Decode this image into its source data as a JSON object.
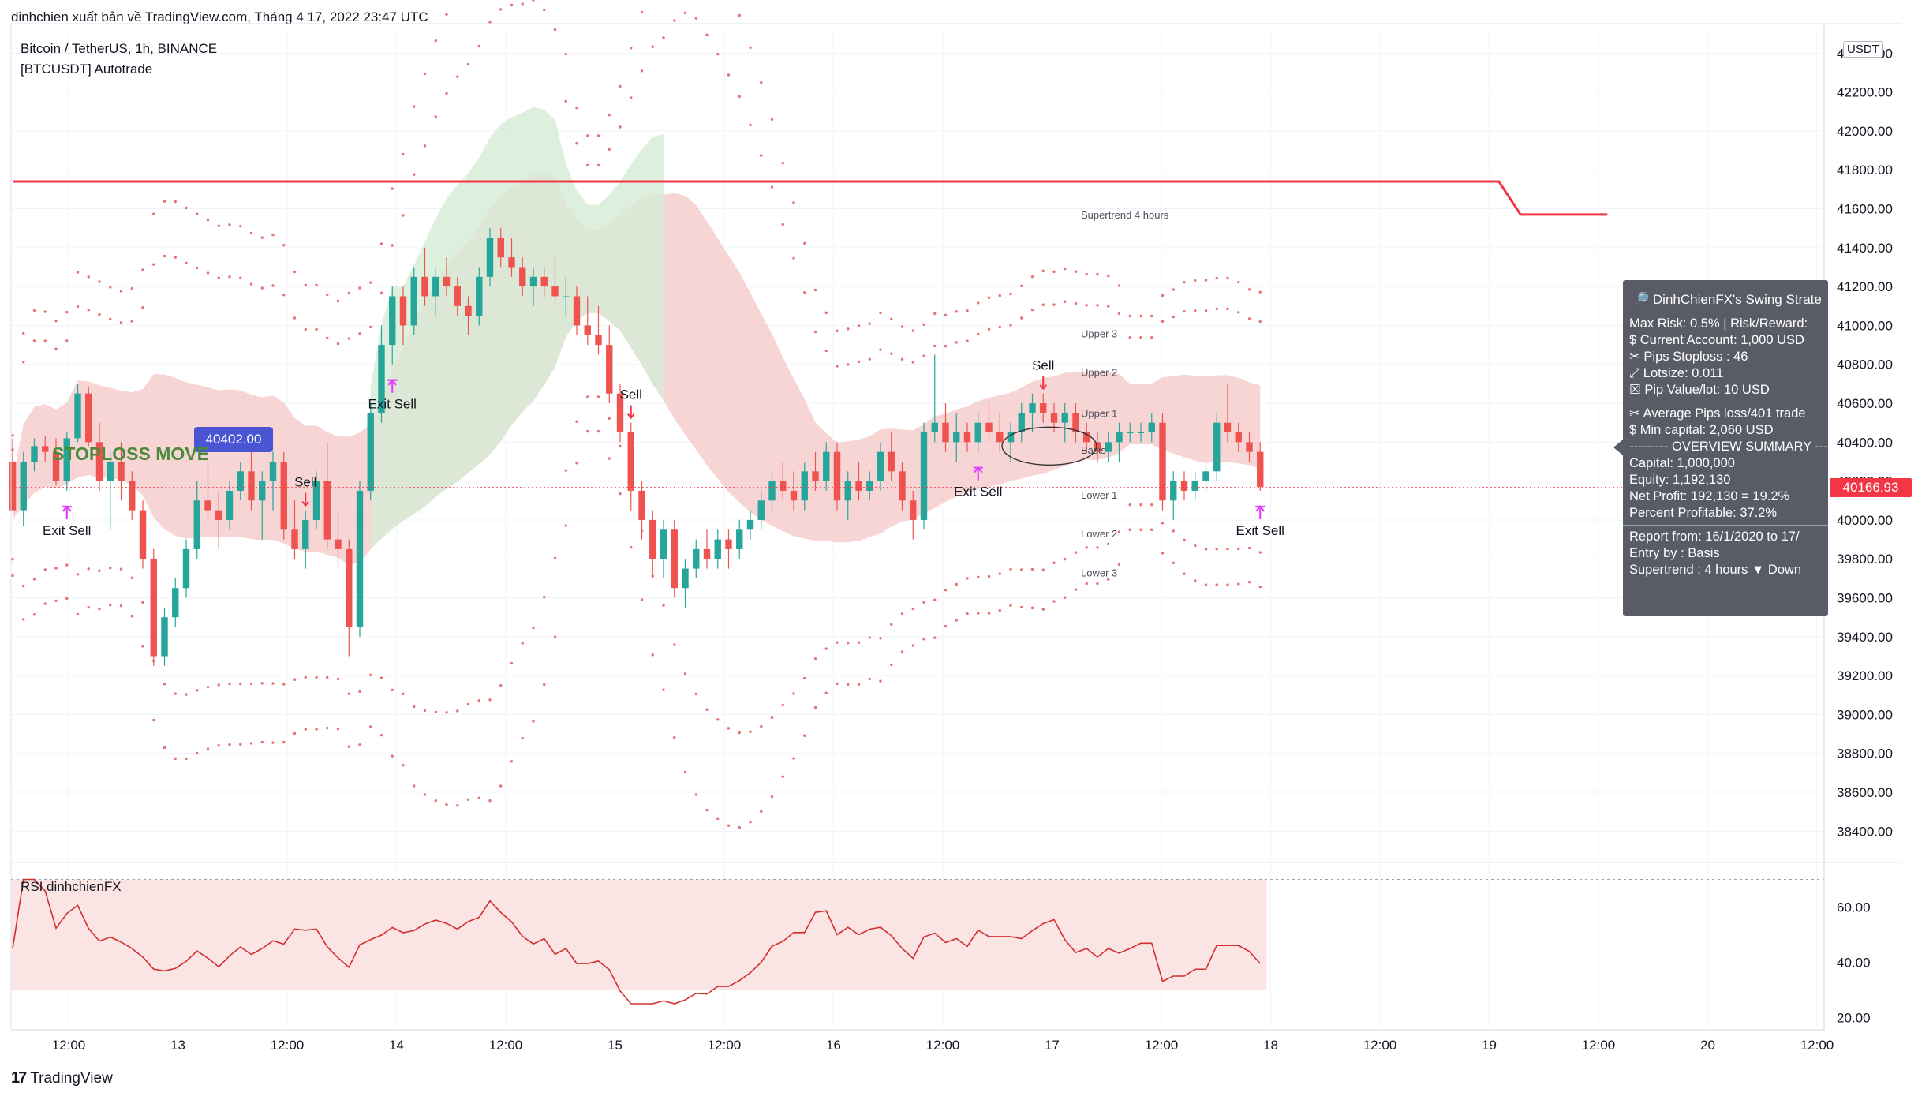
{
  "topbar": "dinhchien xuất bản về TradingView.com, Tháng 4 17, 2022 23:47 UTC",
  "legend": {
    "symbol": "Bitcoin / TetherUS, 1h, BINANCE",
    "indicator": "[BTCUSDT] Autotrade",
    "rsi": "RSI dinhchienFX"
  },
  "currency_badge": "USDT",
  "last_price": "40166.93",
  "stoploss_badge": "40402.00",
  "stoploss_label": "STOPLOSS MOVE",
  "band_labels": {
    "supertrend": "Supertrend 4 hours",
    "upper3": "Upper 3",
    "upper2": "Upper 2",
    "upper1": "Upper 1",
    "basis": "Basis",
    "lower1": "Lower 1",
    "lower2": "Lower 2",
    "lower3": "Lower 3"
  },
  "signals": [
    {
      "text": "Sell",
      "i": 27
    },
    {
      "text": "Sell",
      "i": 57
    },
    {
      "text": "Sell",
      "i": 95
    },
    {
      "text": "Exit Sell",
      "i": 5
    },
    {
      "text": "Exit Sell",
      "i": 35
    },
    {
      "text": "Exit Sell",
      "i": 89
    },
    {
      "text": "Exit Sell",
      "i": 124
    }
  ],
  "x_axis": [
    "12:00",
    "13",
    "12:00",
    "14",
    "12:00",
    "15",
    "12:00",
    "16",
    "12:00",
    "17",
    "12:00",
    "18",
    "12:00",
    "19",
    "12:00",
    "20",
    "12:00"
  ],
  "y_axis_price": [
    "42400.00",
    "42200.00",
    "42000.00",
    "41800.00",
    "41600.00",
    "41400.00",
    "41200.00",
    "41000.00",
    "40800.00",
    "40600.00",
    "40400.00",
    "40200.00",
    "40000.00",
    "39800.00",
    "39600.00",
    "39400.00",
    "39200.00",
    "39000.00",
    "38800.00",
    "38600.00",
    "38400.00"
  ],
  "y_axis_rsi": [
    "60.00",
    "40.00",
    "20.00"
  ],
  "stats_panel": {
    "title": "🔎 DinhChienFX's Swing Strate",
    "lines_a": [
      "Max Risk: 0.5% | Risk/Reward:",
      "$ Current Account: 1,000 USD",
      "✂ Pips Stoploss : 46",
      "⤢ Lotsize: 0.011",
      "☒ Pip Value/lot: 10 USD"
    ],
    "lines_b": [
      "✂ Average Pips loss/401 trade",
      "$ Min capital: 2,060 USD",
      "--------- OVERVIEW SUMMARY ---",
      " Capital: 1,000,000",
      " Equity: 1,192,130",
      " Net Profit: 192,130 = 19.2%",
      " Percent Profitable: 37.2%"
    ],
    "lines_c": [
      "Report from: 16/1/2020 to 17/",
      " Entry by : Basis",
      " Supertrend : 4 hours  ▼ Down"
    ]
  },
  "footer": {
    "logo": "17",
    "name": "TradingView"
  },
  "colors": {
    "up": "#26a69a",
    "down": "#ef5350",
    "supertrend": "#f23645",
    "band_fill": "#f4c7c7",
    "green_fill": "#d5ecd5",
    "signal_arrow": "#e040fb"
  },
  "chart_data": {
    "type": "candlestick",
    "timeframe": "1h",
    "symbol": "BTCUSDT",
    "ylim": [
      38300,
      42450
    ],
    "rsi_ylim": [
      17,
      75
    ],
    "rsi_levels": [
      70,
      30
    ],
    "supertrend_4h": [
      [
        0,
        41740
      ],
      [
        137,
        41740
      ],
      [
        139,
        41570
      ],
      [
        147,
        41570
      ]
    ],
    "candles": [
      [
        40300,
        40420,
        40050,
        40050
      ],
      [
        40050,
        40350,
        39970,
        40300
      ],
      [
        40300,
        40420,
        40250,
        40380
      ],
      [
        40380,
        40430,
        40300,
        40350
      ],
      [
        40350,
        40420,
        40180,
        40200
      ],
      [
        40200,
        40450,
        40150,
        40420
      ],
      [
        40420,
        40700,
        40400,
        40650
      ],
      [
        40650,
        40680,
        40380,
        40400
      ],
      [
        40400,
        40500,
        40150,
        40200
      ],
      [
        40200,
        40350,
        39950,
        40300
      ],
      [
        40300,
        40400,
        40100,
        40200
      ],
      [
        40200,
        40250,
        40000,
        40050
      ],
      [
        40050,
        40100,
        39750,
        39800
      ],
      [
        39800,
        39850,
        39250,
        39300
      ],
      [
        39300,
        39550,
        39250,
        39500
      ],
      [
        39500,
        39700,
        39450,
        39650
      ],
      [
        39650,
        39900,
        39600,
        39850
      ],
      [
        39850,
        40200,
        39800,
        40100
      ],
      [
        40100,
        40300,
        40000,
        40050
      ],
      [
        40050,
        40150,
        39850,
        40000
      ],
      [
        40000,
        40200,
        39950,
        40150
      ],
      [
        40150,
        40300,
        40100,
        40250
      ],
      [
        40250,
        40400,
        40050,
        40100
      ],
      [
        40100,
        40250,
        39900,
        40200
      ],
      [
        40200,
        40350,
        40050,
        40300
      ],
      [
        40300,
        40350,
        39900,
        39950
      ],
      [
        39950,
        40100,
        39800,
        39850
      ],
      [
        39850,
        40050,
        39750,
        40000
      ],
      [
        40000,
        40250,
        39950,
        40200
      ],
      [
        40200,
        40400,
        39850,
        39900
      ],
      [
        39900,
        40050,
        39750,
        39850
      ],
      [
        39850,
        39900,
        39300,
        39450
      ],
      [
        39450,
        40200,
        39400,
        40150
      ],
      [
        40150,
        40600,
        40100,
        40550
      ],
      [
        40550,
        41000,
        40500,
        40900
      ],
      [
        40900,
        41200,
        40800,
        41150
      ],
      [
        41150,
        41200,
        40900,
        41000
      ],
      [
        41000,
        41300,
        40950,
        41250
      ],
      [
        41250,
        41400,
        41100,
        41150
      ],
      [
        41150,
        41300,
        41050,
        41250
      ],
      [
        41250,
        41350,
        41150,
        41200
      ],
      [
        41200,
        41250,
        41050,
        41100
      ],
      [
        41100,
        41150,
        40950,
        41050
      ],
      [
        41050,
        41300,
        41000,
        41250
      ],
      [
        41250,
        41500,
        41200,
        41450
      ],
      [
        41450,
        41500,
        41300,
        41350
      ],
      [
        41350,
        41450,
        41250,
        41300
      ],
      [
        41300,
        41350,
        41150,
        41200
      ],
      [
        41200,
        41300,
        41100,
        41250
      ],
      [
        41250,
        41300,
        41150,
        41200
      ],
      [
        41200,
        41350,
        41100,
        41150
      ],
      [
        41150,
        41250,
        41050,
        41150
      ],
      [
        41150,
        41200,
        40950,
        41000
      ],
      [
        41000,
        41150,
        40900,
        40950
      ],
      [
        40950,
        41100,
        40850,
        40900
      ],
      [
        40900,
        41000,
        40600,
        40650
      ],
      [
        40650,
        40700,
        40400,
        40450
      ],
      [
        40450,
        40500,
        40050,
        40150
      ],
      [
        40150,
        40200,
        39900,
        40000
      ],
      [
        40000,
        40050,
        39700,
        39800
      ],
      [
        39800,
        40000,
        39700,
        39950
      ],
      [
        39950,
        40000,
        39600,
        39650
      ],
      [
        39650,
        39800,
        39550,
        39750
      ],
      [
        39750,
        39900,
        39700,
        39850
      ],
      [
        39850,
        39950,
        39750,
        39800
      ],
      [
        39800,
        39950,
        39750,
        39900
      ],
      [
        39900,
        39950,
        39750,
        39850
      ],
      [
        39850,
        40000,
        39800,
        39950
      ],
      [
        39950,
        40050,
        39900,
        40000
      ],
      [
        40000,
        40150,
        39950,
        40100
      ],
      [
        40100,
        40250,
        40050,
        40200
      ],
      [
        40200,
        40300,
        40100,
        40150
      ],
      [
        40150,
        40250,
        40050,
        40100
      ],
      [
        40100,
        40300,
        40050,
        40250
      ],
      [
        40250,
        40350,
        40150,
        40200
      ],
      [
        40200,
        40400,
        40150,
        40350
      ],
      [
        40350,
        40400,
        40050,
        40100
      ],
      [
        40100,
        40250,
        40000,
        40200
      ],
      [
        40200,
        40300,
        40100,
        40150
      ],
      [
        40150,
        40250,
        40100,
        40200
      ],
      [
        40200,
        40400,
        40150,
        40350
      ],
      [
        40350,
        40450,
        40200,
        40250
      ],
      [
        40250,
        40300,
        40050,
        40100
      ],
      [
        40100,
        40150,
        39900,
        40000
      ],
      [
        40000,
        40500,
        39950,
        40450
      ],
      [
        40450,
        40850,
        40400,
        40500
      ],
      [
        40500,
        40600,
        40350,
        40400
      ],
      [
        40400,
        40550,
        40300,
        40450
      ],
      [
        40450,
        40500,
        40350,
        40400
      ],
      [
        40400,
        40550,
        40350,
        40500
      ],
      [
        40500,
        40600,
        40400,
        40450
      ],
      [
        40450,
        40550,
        40350,
        40400
      ],
      [
        40400,
        40500,
        40300,
        40450
      ],
      [
        40450,
        40600,
        40400,
        40550
      ],
      [
        40550,
        40650,
        40450,
        40600
      ],
      [
        40600,
        40650,
        40500,
        40550
      ],
      [
        40550,
        40600,
        40450,
        40500
      ],
      [
        40500,
        40600,
        40400,
        40550
      ],
      [
        40550,
        40600,
        40400,
        40450
      ],
      [
        40450,
        40500,
        40350,
        40400
      ],
      [
        40400,
        40450,
        40300,
        40350
      ],
      [
        40350,
        40450,
        40300,
        40400
      ],
      [
        40400,
        40500,
        40300,
        40450
      ],
      [
        40450,
        40500,
        40400,
        40450
      ],
      [
        40450,
        40500,
        40400,
        40450
      ],
      [
        40450,
        40550,
        40400,
        40500
      ],
      [
        40500,
        40550,
        40050,
        40100
      ],
      [
        40100,
        40250,
        40000,
        40200
      ],
      [
        40200,
        40250,
        40100,
        40150
      ],
      [
        40150,
        40250,
        40100,
        40200
      ],
      [
        40200,
        40300,
        40150,
        40250
      ],
      [
        40250,
        40550,
        40200,
        40500
      ],
      [
        40500,
        40700,
        40400,
        40450
      ],
      [
        40450,
        40500,
        40350,
        40400
      ],
      [
        40400,
        40450,
        40300,
        40350
      ],
      [
        40350,
        40400,
        40150,
        40170
      ]
    ]
  }
}
